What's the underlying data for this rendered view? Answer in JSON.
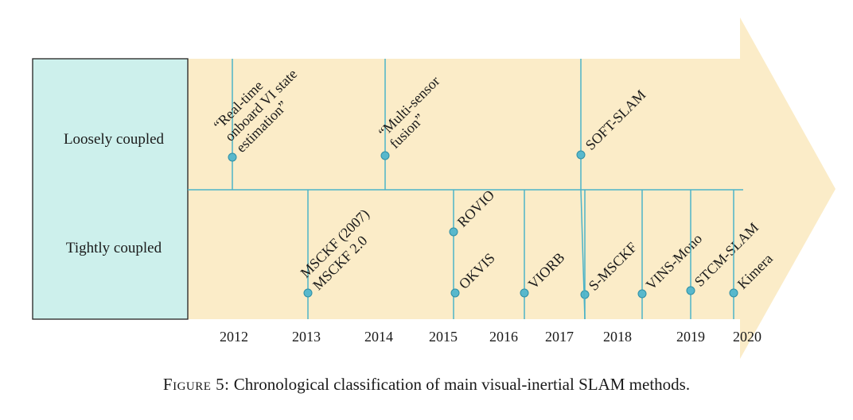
{
  "colors": {
    "arrow_fill": "#fbecc8",
    "row_label_fill": "#cdf0ec",
    "line": "#4cb3c7",
    "dot": "#58b8cc",
    "dot_stroke": "#2f8fa5",
    "border": "#222222"
  },
  "rows": {
    "loosely": "Loosely coupled",
    "tightly": "Tightly coupled"
  },
  "years": [
    "2012",
    "2013",
    "2014",
    "2015",
    "2016",
    "2017",
    "2018",
    "2019",
    "2020"
  ],
  "loosely_methods": [
    "“Real-time onboard VI state estimation”",
    "“Multi-sensor fusion”",
    "SOFT-SLAM"
  ],
  "tightly_methods": [
    "MSCKF (2007) MSCKF 2.0",
    "ROVIO",
    "OKVIS",
    "VIORB",
    "S-MSCKF",
    "VINS-Mono",
    "STCM-SLAM",
    "Kimera"
  ],
  "caption": {
    "prefix": "Figure 5:",
    "text": " Chronological classification of main visual-inertial SLAM methods."
  }
}
